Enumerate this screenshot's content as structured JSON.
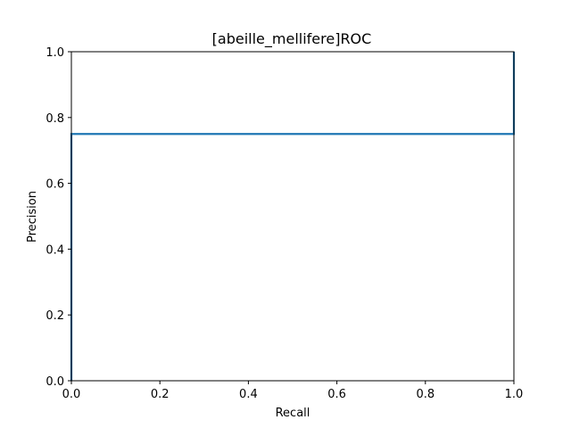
{
  "chart_data": {
    "type": "line",
    "title": "[abeille_mellifere]ROC",
    "xlabel": "Recall",
    "ylabel": "Precision",
    "xlim": [
      0.0,
      1.0
    ],
    "ylim": [
      0.0,
      1.0
    ],
    "xticks": [
      "0.0",
      "0.2",
      "0.4",
      "0.6",
      "0.8",
      "1.0"
    ],
    "yticks": [
      "0.0",
      "0.2",
      "0.4",
      "0.6",
      "0.8",
      "1.0"
    ],
    "grid": false,
    "series": [
      {
        "color": "#1f77b4",
        "x": [
          0.0,
          0.0,
          1.0,
          1.0
        ],
        "y": [
          0.0,
          0.75,
          0.75,
          1.0
        ]
      }
    ]
  }
}
